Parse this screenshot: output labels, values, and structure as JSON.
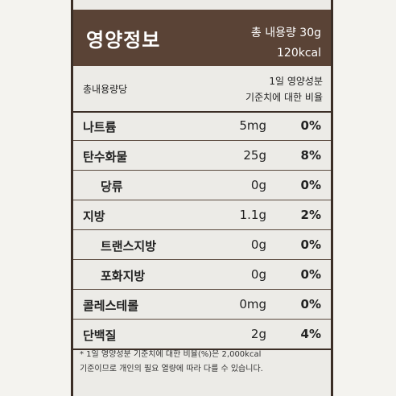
{
  "header": {
    "title": "영양정보",
    "total": "총 내용량 30g",
    "kcal": "120kcal"
  },
  "sub": {
    "left": "총내용량당",
    "right_line1": "1일 영양성분",
    "right_line2": "기준치에 대한 비율"
  },
  "rows": [
    {
      "name": "나트륨",
      "amount": "5mg",
      "percent": "0%",
      "indent": false
    },
    {
      "name": "탄수화물",
      "amount": "25g",
      "percent": "8%",
      "indent": false
    },
    {
      "name": "당류",
      "amount": "0g",
      "percent": "0%",
      "indent": true
    },
    {
      "name": "지방",
      "amount": "1.1g",
      "percent": "2%",
      "indent": false
    },
    {
      "name": "트랜스지방",
      "amount": "0g",
      "percent": "0%",
      "indent": true
    },
    {
      "name": "포화지방",
      "amount": "0g",
      "percent": "0%",
      "indent": true
    },
    {
      "name": "콜레스테롤",
      "amount": "0mg",
      "percent": "0%",
      "indent": false
    },
    {
      "name": "단백질",
      "amount": "2g",
      "percent": "4%",
      "indent": false
    }
  ],
  "footer": {
    "line1": "* 1일 영양성분 기준치에 대한 비율(%)은 2,000kcal",
    "line2": "기준이므로 개인의 필요 열량에 따라 다를 수 있습니다."
  }
}
